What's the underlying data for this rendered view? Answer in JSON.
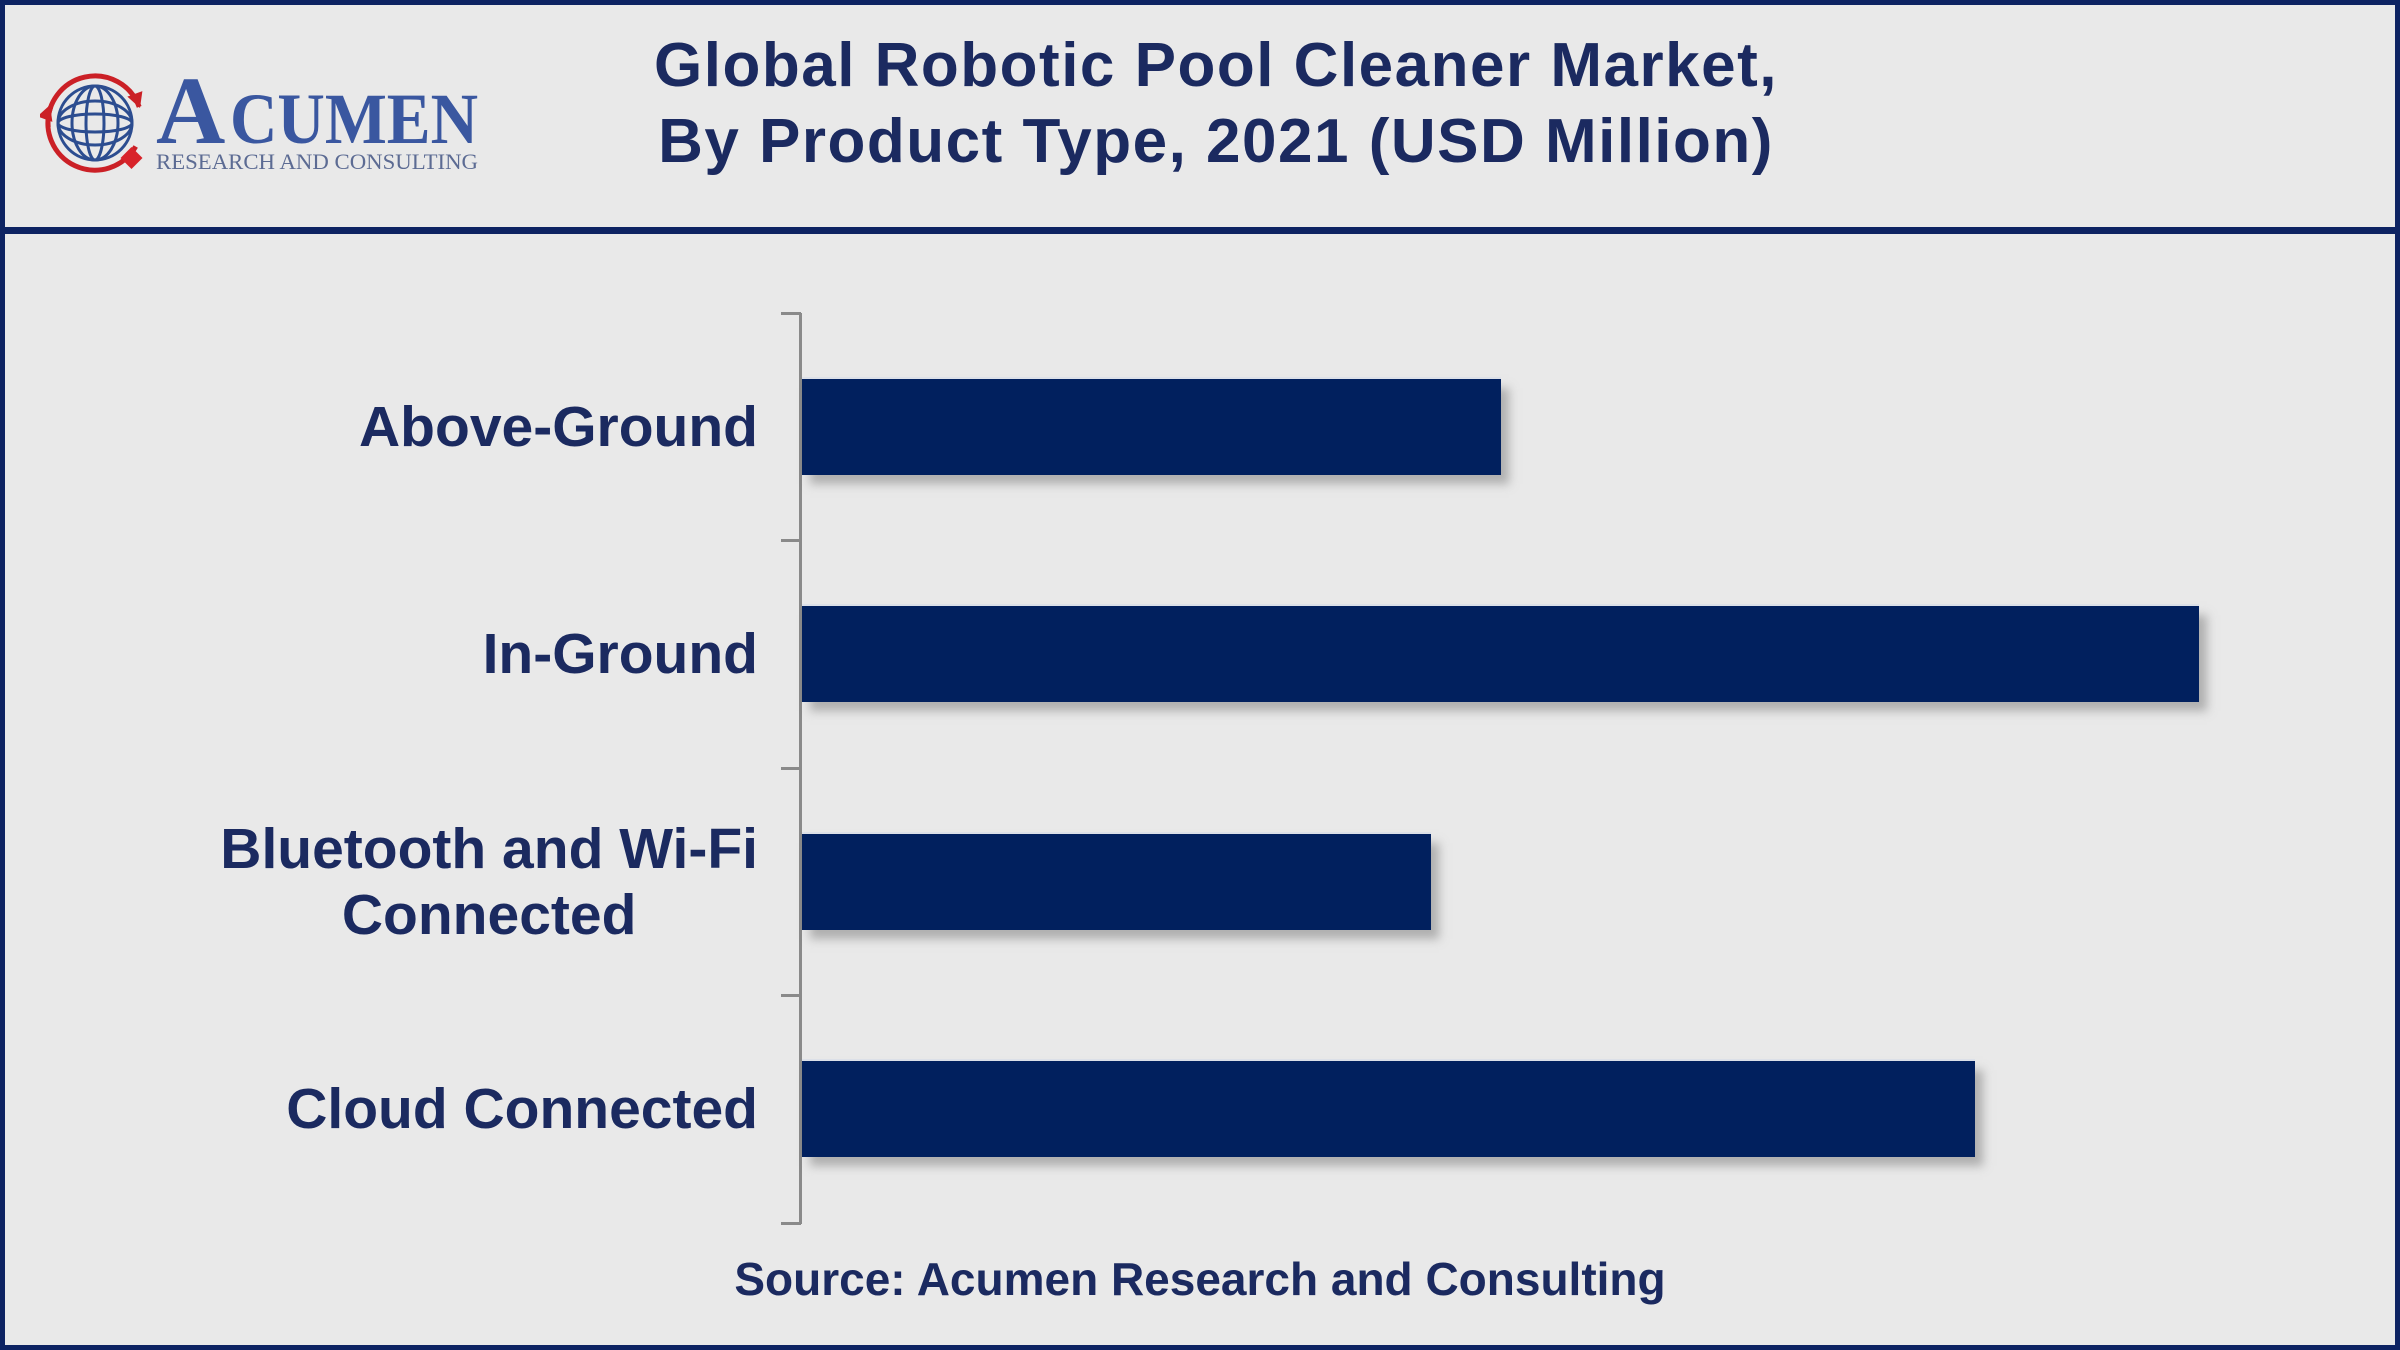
{
  "theme": {
    "background": "#e9e9e9",
    "frame_border": "#0d2362",
    "navy_text": "#1b2a60",
    "bar_fill": "#01205e",
    "axis_gray": "#8a8a8a"
  },
  "header": {
    "logo": {
      "brand_initial": "A",
      "brand_rest": "CUMEN",
      "tagline": "RESEARCH AND CONSULTING",
      "brand_color": "#3a57a0",
      "tagline_color": "#5c6b93",
      "globe_color": "#2c4d90",
      "red_accent": "#cb2026",
      "diamond_red": "#d8232a"
    },
    "title_line1": "Global Robotic Pool Cleaner Market,",
    "title_line2": "By Product Type, 2021 (USD Million)"
  },
  "chart_data": {
    "type": "bar",
    "orientation": "horizontal",
    "title": "Global Robotic Pool Cleaner Market, By Product Type, 2021 (USD Million)",
    "categories": [
      "Above-Ground",
      "In-Ground",
      "Bluetooth and Wi-Fi Connected",
      "Cloud Connected"
    ],
    "category_display_lines": [
      [
        "Above-Ground"
      ],
      [
        "In-Ground"
      ],
      [
        "Bluetooth and Wi-Fi",
        "Connected"
      ],
      [
        "Cloud Connected"
      ]
    ],
    "values": [
      50,
      100,
      45,
      84
    ],
    "value_note": "No numeric value axis or data labels are shown; values are estimated bar lengths relative to the longest bar (In-Ground = 100)",
    "xlabel": "",
    "ylabel": "",
    "grid": false,
    "legend": false,
    "bar_color": "#01205e"
  },
  "footer": {
    "source": "Source: Acumen Research and Consulting"
  }
}
